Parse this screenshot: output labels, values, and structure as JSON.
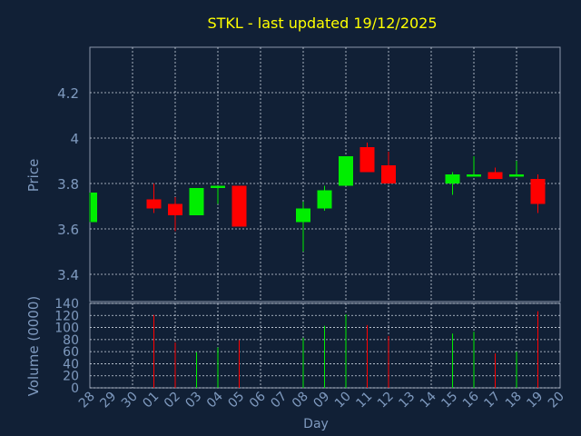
{
  "chart_data": {
    "type": "candlestick",
    "title": "STKL - last updated 19/12/2025",
    "xlabel": "Day",
    "ylabel_price": "Price",
    "ylabel_volume": "Volume (0000)",
    "price_ylim": [
      3.28,
      4.4
    ],
    "price_ticks": [
      "3.4",
      "3.6",
      "3.8",
      "4",
      "4.2"
    ],
    "volume_ylim": [
      0,
      140
    ],
    "volume_ticks": [
      "0",
      "20",
      "40",
      "60",
      "80",
      "100",
      "120",
      "140"
    ],
    "grid": true,
    "days": [
      "28",
      "29",
      "30",
      "01",
      "02",
      "03",
      "04",
      "05",
      "06",
      "07",
      "08",
      "09",
      "10",
      "11",
      "12",
      "13",
      "14",
      "15",
      "16",
      "17",
      "18",
      "19",
      "20"
    ],
    "candles": [
      {
        "day": "28",
        "open": 3.63,
        "high": 3.76,
        "low": 3.63,
        "close": 3.76,
        "volume": null
      },
      {
        "day": "01",
        "open": 3.73,
        "high": 3.8,
        "low": 3.67,
        "close": 3.69,
        "volume": 121
      },
      {
        "day": "02",
        "open": 3.71,
        "high": 3.74,
        "low": 3.59,
        "close": 3.66,
        "volume": 75
      },
      {
        "day": "03",
        "open": 3.66,
        "high": 3.78,
        "low": 3.66,
        "close": 3.78,
        "volume": 59
      },
      {
        "day": "04",
        "open": 3.78,
        "high": 3.79,
        "low": 3.71,
        "close": 3.79,
        "volume": 67
      },
      {
        "day": "05",
        "open": 3.79,
        "high": 3.79,
        "low": 3.61,
        "close": 3.61,
        "volume": 79
      },
      {
        "day": "08",
        "open": 3.63,
        "high": 3.72,
        "low": 3.5,
        "close": 3.69,
        "volume": 83
      },
      {
        "day": "09",
        "open": 3.69,
        "high": 3.79,
        "low": 3.68,
        "close": 3.77,
        "volume": 103
      },
      {
        "day": "10",
        "open": 3.79,
        "high": 3.92,
        "low": 3.79,
        "close": 3.92,
        "volume": 122
      },
      {
        "day": "11",
        "open": 3.96,
        "high": 3.98,
        "low": 3.85,
        "close": 3.85,
        "volume": 104
      },
      {
        "day": "12",
        "open": 3.88,
        "high": 3.94,
        "low": 3.8,
        "close": 3.8,
        "volume": 86
      },
      {
        "day": "15",
        "open": 3.8,
        "high": 3.85,
        "low": 3.75,
        "close": 3.84,
        "volume": 90
      },
      {
        "day": "16",
        "open": 3.83,
        "high": 3.92,
        "low": 3.83,
        "close": 3.84,
        "volume": 93
      },
      {
        "day": "17",
        "open": 3.85,
        "high": 3.87,
        "low": 3.82,
        "close": 3.82,
        "volume": 57
      },
      {
        "day": "18",
        "open": 3.83,
        "high": 3.9,
        "low": 3.83,
        "close": 3.84,
        "volume": 60
      },
      {
        "day": "19",
        "open": 3.82,
        "high": 3.84,
        "low": 3.67,
        "close": 3.71,
        "volume": 127
      }
    ],
    "colors": {
      "background": "#112036",
      "plot_border": "#8a96ab",
      "grid": "#ced6e2",
      "title": "#ffff00",
      "labels": "#7f9abf",
      "up": "#00ee00",
      "down": "#ff0000"
    }
  }
}
